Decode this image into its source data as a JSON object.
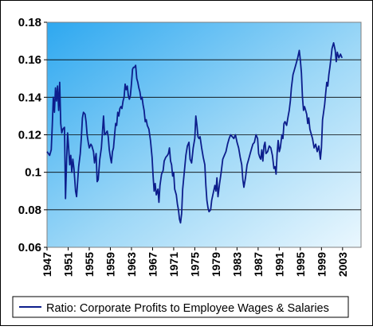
{
  "chart_data": {
    "type": "line",
    "title": "",
    "xlabel": "",
    "ylabel": "",
    "ylim": [
      0.06,
      0.18
    ],
    "xlim": [
      1947,
      2006.5
    ],
    "grid": "horizontal",
    "legend_position": "bottom",
    "y_ticks": [
      "0.06",
      "0.08",
      "0.1",
      "0.12",
      "0.14",
      "0.16",
      "0.18"
    ],
    "x_ticks": [
      "1947",
      "1951",
      "1955",
      "1959",
      "1963",
      "1967",
      "1971",
      "1975",
      "1979",
      "1983",
      "1987",
      "1991",
      "1995",
      "1999",
      "2003"
    ],
    "series": [
      {
        "name": "Ratio: Corporate Profits to Employee Wages & Salaries",
        "color": "#0d1e8c",
        "points": [
          [
            1947.0,
            0.111
          ],
          [
            1947.5,
            0.109
          ],
          [
            1947.8,
            0.112
          ],
          [
            1948.0,
            0.125
          ],
          [
            1948.2,
            0.14
          ],
          [
            1948.4,
            0.132
          ],
          [
            1948.6,
            0.145
          ],
          [
            1948.8,
            0.138
          ],
          [
            1949.0,
            0.146
          ],
          [
            1949.2,
            0.133
          ],
          [
            1949.4,
            0.148
          ],
          [
            1949.6,
            0.126
          ],
          [
            1949.8,
            0.121
          ],
          [
            1950.0,
            0.123
          ],
          [
            1950.3,
            0.124
          ],
          [
            1950.5,
            0.086
          ],
          [
            1950.7,
            0.105
          ],
          [
            1950.9,
            0.121
          ],
          [
            1951.1,
            0.113
          ],
          [
            1951.3,
            0.104
          ],
          [
            1951.5,
            0.109
          ],
          [
            1951.7,
            0.1
          ],
          [
            1951.9,
            0.107
          ],
          [
            1952.1,
            0.102
          ],
          [
            1952.4,
            0.09
          ],
          [
            1952.6,
            0.087
          ],
          [
            1952.8,
            0.095
          ],
          [
            1953.0,
            0.103
          ],
          [
            1953.3,
            0.11
          ],
          [
            1953.5,
            0.118
          ],
          [
            1953.7,
            0.129
          ],
          [
            1953.9,
            0.132
          ],
          [
            1954.2,
            0.131
          ],
          [
            1954.4,
            0.127
          ],
          [
            1954.6,
            0.12
          ],
          [
            1954.8,
            0.116
          ],
          [
            1955.0,
            0.113
          ],
          [
            1955.3,
            0.115
          ],
          [
            1955.5,
            0.114
          ],
          [
            1955.8,
            0.111
          ],
          [
            1956.0,
            0.105
          ],
          [
            1956.3,
            0.11
          ],
          [
            1956.5,
            0.095
          ],
          [
            1956.7,
            0.096
          ],
          [
            1957.0,
            0.107
          ],
          [
            1957.3,
            0.113
          ],
          [
            1957.5,
            0.121
          ],
          [
            1957.7,
            0.13
          ],
          [
            1957.9,
            0.12
          ],
          [
            1958.2,
            0.121
          ],
          [
            1958.4,
            0.122
          ],
          [
            1958.6,
            0.119
          ],
          [
            1958.8,
            0.112
          ],
          [
            1959.0,
            0.108
          ],
          [
            1959.2,
            0.105
          ],
          [
            1959.4,
            0.111
          ],
          [
            1959.6,
            0.113
          ],
          [
            1959.8,
            0.12
          ],
          [
            1960.0,
            0.126
          ],
          [
            1960.2,
            0.125
          ],
          [
            1960.4,
            0.132
          ],
          [
            1960.6,
            0.13
          ],
          [
            1960.8,
            0.134
          ],
          [
            1961.0,
            0.135
          ],
          [
            1961.2,
            0.134
          ],
          [
            1961.4,
            0.138
          ],
          [
            1961.6,
            0.14
          ],
          [
            1961.8,
            0.147
          ],
          [
            1962.0,
            0.144
          ],
          [
            1962.2,
            0.146
          ],
          [
            1962.4,
            0.141
          ],
          [
            1962.6,
            0.139
          ],
          [
            1962.8,
            0.141
          ],
          [
            1963.0,
            0.147
          ],
          [
            1963.2,
            0.155
          ],
          [
            1963.4,
            0.156
          ],
          [
            1963.6,
            0.156
          ],
          [
            1963.8,
            0.157
          ],
          [
            1964.0,
            0.15
          ],
          [
            1964.2,
            0.148
          ],
          [
            1964.4,
            0.145
          ],
          [
            1964.6,
            0.143
          ],
          [
            1964.8,
            0.139
          ],
          [
            1965.0,
            0.14
          ],
          [
            1965.2,
            0.136
          ],
          [
            1965.4,
            0.133
          ],
          [
            1965.6,
            0.127
          ],
          [
            1965.8,
            0.128
          ],
          [
            1966.0,
            0.125
          ],
          [
            1966.3,
            0.123
          ],
          [
            1966.6,
            0.117
          ],
          [
            1966.9,
            0.108
          ],
          [
            1967.1,
            0.098
          ],
          [
            1967.3,
            0.09
          ],
          [
            1967.5,
            0.094
          ],
          [
            1967.7,
            0.088
          ],
          [
            1968.0,
            0.091
          ],
          [
            1968.2,
            0.084
          ],
          [
            1968.4,
            0.093
          ],
          [
            1968.7,
            0.099
          ],
          [
            1969.0,
            0.101
          ],
          [
            1969.2,
            0.106
          ],
          [
            1969.5,
            0.108
          ],
          [
            1969.8,
            0.109
          ],
          [
            1970.0,
            0.11
          ],
          [
            1970.2,
            0.113
          ],
          [
            1970.4,
            0.106
          ],
          [
            1970.6,
            0.104
          ],
          [
            1970.8,
            0.098
          ],
          [
            1971.0,
            0.1
          ],
          [
            1971.2,
            0.091
          ],
          [
            1971.5,
            0.088
          ],
          [
            1971.7,
            0.083
          ],
          [
            1971.9,
            0.08
          ],
          [
            1972.1,
            0.075
          ],
          [
            1972.3,
            0.073
          ],
          [
            1972.5,
            0.078
          ],
          [
            1972.7,
            0.091
          ],
          [
            1973.0,
            0.1
          ],
          [
            1973.3,
            0.109
          ],
          [
            1973.6,
            0.114
          ],
          [
            1973.9,
            0.116
          ],
          [
            1974.1,
            0.107
          ],
          [
            1974.4,
            0.105
          ],
          [
            1974.7,
            0.113
          ],
          [
            1975.0,
            0.118
          ],
          [
            1975.2,
            0.13
          ],
          [
            1975.4,
            0.125
          ],
          [
            1975.6,
            0.119
          ],
          [
            1975.8,
            0.118
          ],
          [
            1976.0,
            0.119
          ],
          [
            1976.3,
            0.113
          ],
          [
            1976.6,
            0.108
          ],
          [
            1976.9,
            0.104
          ],
          [
            1977.1,
            0.093
          ],
          [
            1977.3,
            0.085
          ],
          [
            1977.5,
            0.081
          ],
          [
            1977.7,
            0.079
          ],
          [
            1978.0,
            0.08
          ],
          [
            1978.2,
            0.085
          ],
          [
            1978.5,
            0.089
          ],
          [
            1978.8,
            0.093
          ],
          [
            1979.0,
            0.09
          ],
          [
            1979.2,
            0.097
          ],
          [
            1979.4,
            0.087
          ],
          [
            1979.7,
            0.094
          ],
          [
            1980.0,
            0.1
          ],
          [
            1980.3,
            0.107
          ],
          [
            1980.6,
            0.109
          ],
          [
            1980.9,
            0.111
          ],
          [
            1981.2,
            0.115
          ],
          [
            1981.5,
            0.118
          ],
          [
            1981.8,
            0.12
          ],
          [
            1982.1,
            0.119
          ],
          [
            1982.4,
            0.118
          ],
          [
            1982.7,
            0.12
          ],
          [
            1983.0,
            0.116
          ],
          [
            1983.3,
            0.113
          ],
          [
            1983.6,
            0.108
          ],
          [
            1983.9,
            0.104
          ],
          [
            1984.1,
            0.096
          ],
          [
            1984.3,
            0.092
          ],
          [
            1984.6,
            0.097
          ],
          [
            1984.9,
            0.104
          ],
          [
            1985.2,
            0.107
          ],
          [
            1985.5,
            0.11
          ],
          [
            1985.8,
            0.113
          ],
          [
            1986.0,
            0.115
          ],
          [
            1986.3,
            0.116
          ],
          [
            1986.6,
            0.12
          ],
          [
            1986.9,
            0.118
          ],
          [
            1987.1,
            0.11
          ],
          [
            1987.3,
            0.108
          ],
          [
            1987.5,
            0.107
          ],
          [
            1987.7,
            0.112
          ],
          [
            1987.9,
            0.106
          ],
          [
            1988.1,
            0.114
          ],
          [
            1988.3,
            0.116
          ],
          [
            1988.5,
            0.11
          ],
          [
            1988.8,
            0.111
          ],
          [
            1989.1,
            0.114
          ],
          [
            1989.4,
            0.113
          ],
          [
            1989.7,
            0.109
          ],
          [
            1990.0,
            0.102
          ],
          [
            1990.2,
            0.103
          ],
          [
            1990.4,
            0.099
          ],
          [
            1990.6,
            0.11
          ],
          [
            1990.8,
            0.117
          ],
          [
            1991.0,
            0.111
          ],
          [
            1991.2,
            0.113
          ],
          [
            1991.5,
            0.12
          ],
          [
            1991.7,
            0.118
          ],
          [
            1991.9,
            0.126
          ],
          [
            1992.1,
            0.127
          ],
          [
            1992.4,
            0.125
          ],
          [
            1992.7,
            0.13
          ],
          [
            1992.9,
            0.133
          ],
          [
            1993.1,
            0.138
          ],
          [
            1993.3,
            0.145
          ],
          [
            1993.6,
            0.152
          ],
          [
            1993.9,
            0.155
          ],
          [
            1994.2,
            0.158
          ],
          [
            1994.5,
            0.161
          ],
          [
            1994.8,
            0.165
          ],
          [
            1995.0,
            0.16
          ],
          [
            1995.2,
            0.153
          ],
          [
            1995.4,
            0.14
          ],
          [
            1995.6,
            0.133
          ],
          [
            1995.8,
            0.135
          ],
          [
            1996.0,
            0.133
          ],
          [
            1996.2,
            0.131
          ],
          [
            1996.4,
            0.126
          ],
          [
            1996.6,
            0.129
          ],
          [
            1996.8,
            0.123
          ],
          [
            1997.0,
            0.121
          ],
          [
            1997.3,
            0.118
          ],
          [
            1997.6,
            0.113
          ],
          [
            1997.9,
            0.115
          ],
          [
            1998.2,
            0.111
          ],
          [
            1998.5,
            0.114
          ],
          [
            1998.8,
            0.107
          ],
          [
            1999.0,
            0.113
          ],
          [
            1999.2,
            0.128
          ],
          [
            1999.4,
            0.132
          ],
          [
            1999.6,
            0.136
          ],
          [
            1999.8,
            0.142
          ],
          [
            2000.0,
            0.148
          ],
          [
            2000.2,
            0.146
          ],
          [
            2000.4,
            0.152
          ],
          [
            2000.6,
            0.156
          ],
          [
            2000.8,
            0.161
          ],
          [
            2001.0,
            0.166
          ],
          [
            2001.3,
            0.169
          ],
          [
            2001.6,
            0.165
          ],
          [
            2001.8,
            0.159
          ],
          [
            2002.0,
            0.164
          ],
          [
            2002.3,
            0.161
          ],
          [
            2002.6,
            0.163
          ],
          [
            2002.9,
            0.161
          ]
        ]
      }
    ]
  }
}
